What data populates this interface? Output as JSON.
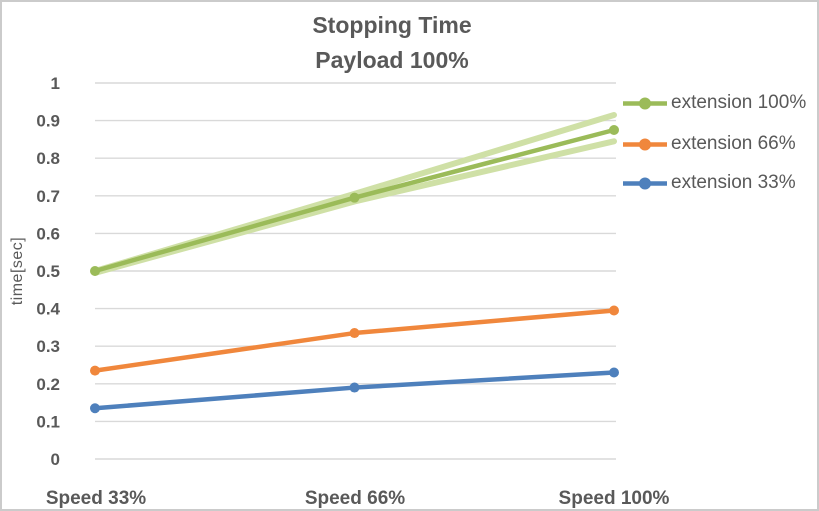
{
  "window": {
    "background": "#FFFFFF",
    "border_color": "#CBCBCB"
  },
  "colors": {
    "grid": "#D9D9D9",
    "text": "#595959",
    "title": "#595959"
  },
  "chart_data": {
    "type": "line",
    "title": "Stopping Time",
    "subtitle": "Payload 100%",
    "ylabel": "time[sec]",
    "xlabel": "",
    "categories": [
      "Speed 33%",
      "Speed 66%",
      "Speed 100%"
    ],
    "yticks": [
      "1",
      "0.9",
      "0.8",
      "0.7",
      "0.6",
      "0.5",
      "0.4",
      "0.3",
      "0.2",
      "0.1",
      "0"
    ],
    "ylim": [
      0,
      1
    ],
    "ytick_step": 0.1,
    "grid": true,
    "legend_position": "right",
    "series": [
      {
        "name": "extension 100%",
        "color": "#9BBB59",
        "markers": true,
        "values": [
          0.5,
          0.695,
          0.875
        ]
      },
      {
        "name": "extension 66%",
        "color": "#F0873C",
        "markers": true,
        "values": [
          0.235,
          0.335,
          0.395
        ]
      },
      {
        "name": "extension 33%",
        "color": "#4E80BC",
        "markers": true,
        "values": [
          0.135,
          0.19,
          0.23
        ]
      }
    ],
    "aux_series": [
      {
        "name": "extension 100% run (upper)",
        "color": "#CFE0A6",
        "markers": false,
        "values": [
          0.5,
          0.705,
          0.915
        ]
      },
      {
        "name": "extension 100% run (lower)",
        "color": "#CFE0A6",
        "markers": false,
        "values": [
          0.495,
          0.685,
          0.845
        ]
      }
    ]
  }
}
